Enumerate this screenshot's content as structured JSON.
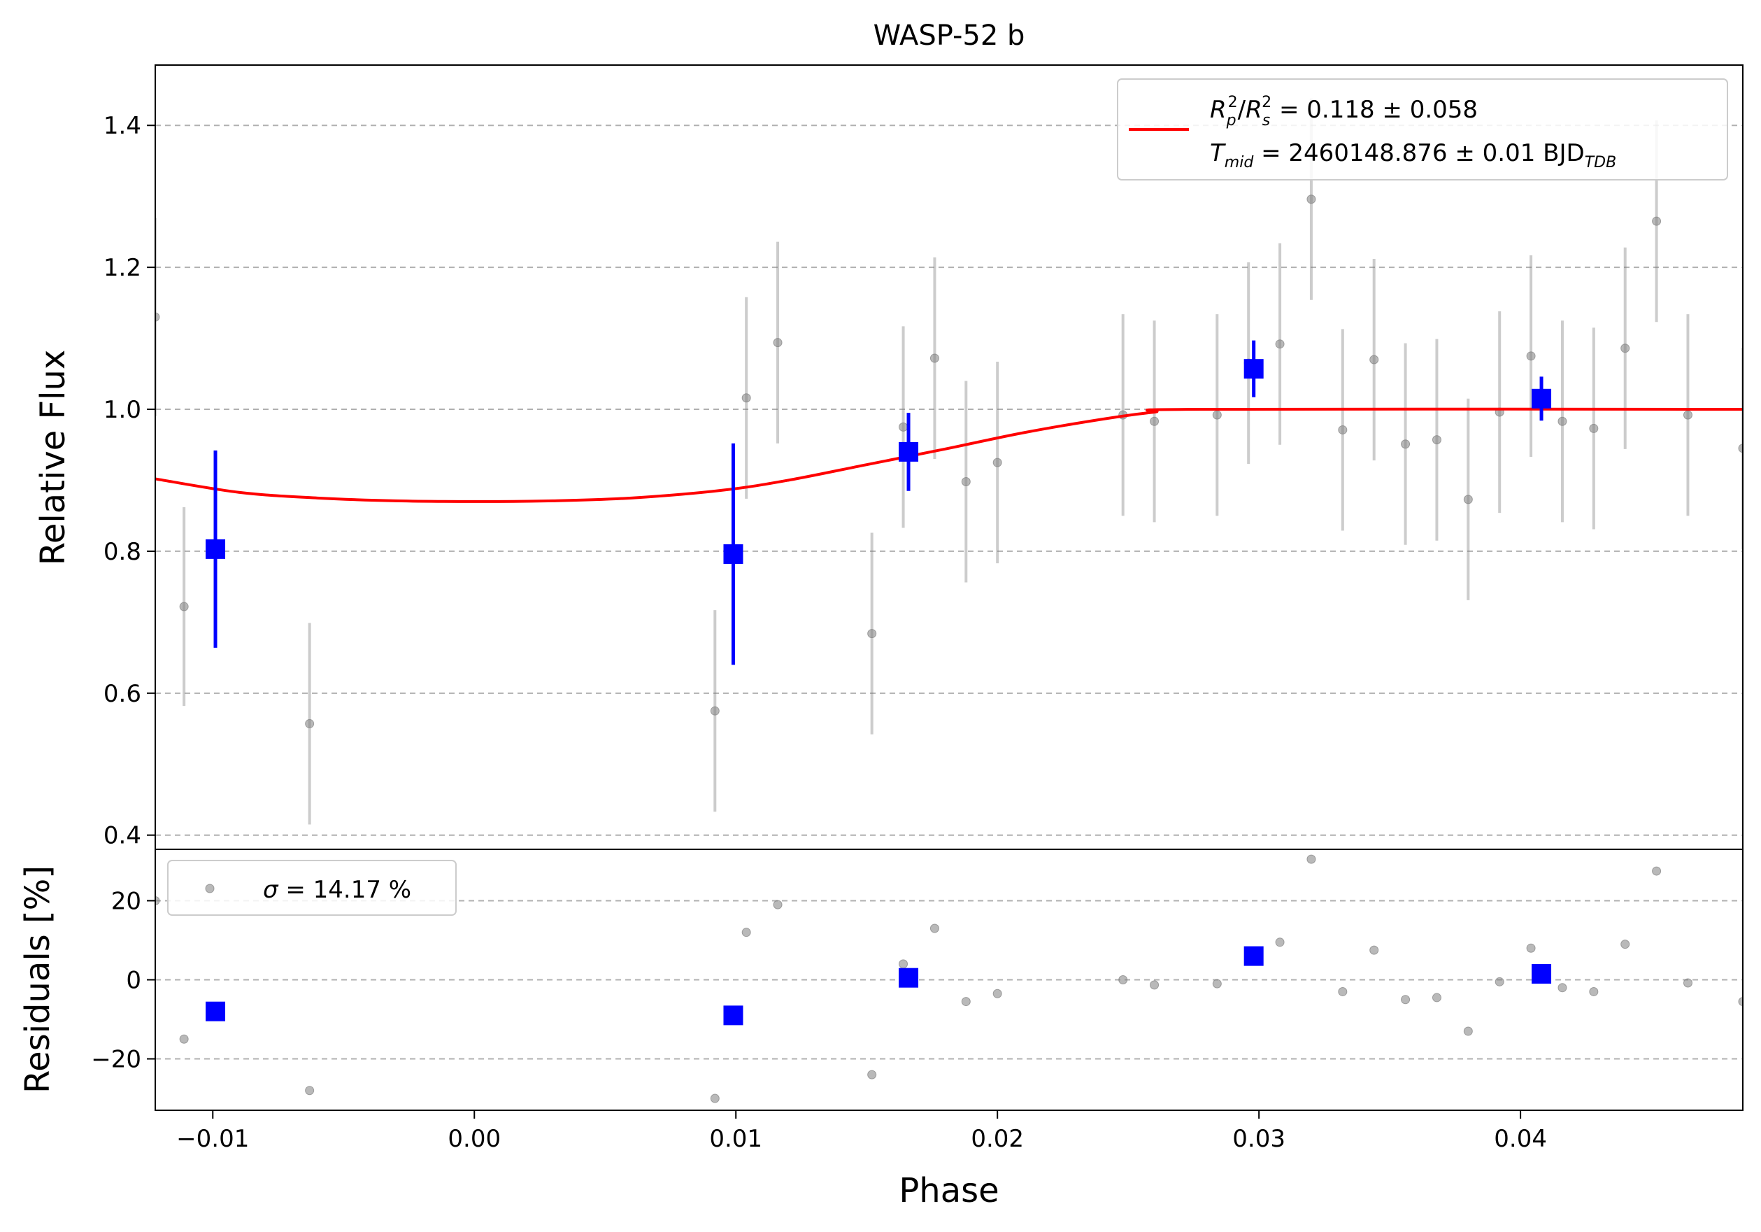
{
  "chart_data": {
    "title": "WASP-52 b",
    "xlabel": "Phase",
    "top_panel": {
      "type": "scatter",
      "ylabel": "Relative Flux",
      "xlim": [
        -0.0122,
        0.0485
      ],
      "ylim": [
        0.38,
        1.485
      ],
      "x_ticks": [
        -0.01,
        0.0,
        0.01,
        0.02,
        0.03,
        0.04
      ],
      "x_tick_labels": [
        "−0.01",
        "0.00",
        "0.01",
        "0.02",
        "0.03",
        "0.04"
      ],
      "y_ticks": [
        0.4,
        0.6,
        0.8,
        1.0,
        1.2,
        1.4
      ],
      "y_tick_labels": [
        "0.4",
        "0.6",
        "0.8",
        "1.0",
        "1.2",
        "1.4"
      ],
      "grid": "horizontal dashed",
      "legend": {
        "placement": "top-right",
        "line1_html": "R<tspan font-style='italic'></tspan>",
        "line1": {
          "a": "R",
          "a_sub": "p",
          "a_sup": "2",
          "b": "R",
          "b_sub": "s",
          "b_sup": "2",
          "rest": " = 0.118 ± 0.058"
        },
        "line2": {
          "a": "T",
          "a_sub": "mid",
          "rest": " = 2460148.876 ± 0.01 BJD",
          "rest_sub": "TDB"
        }
      },
      "raw_points": {
        "color": "#808080",
        "x": [
          -0.0122,
          -0.0111,
          -0.0063,
          0.0092,
          0.0104,
          0.0116,
          0.0152,
          0.0164,
          0.0176,
          0.0188,
          0.02,
          0.0248,
          0.026,
          0.0284,
          0.0296,
          0.0308,
          0.032,
          0.0332,
          0.0344,
          0.0356,
          0.0368,
          0.038,
          0.0392,
          0.0404,
          0.0416,
          0.0428,
          0.044,
          0.0452,
          0.0464,
          0.0485
        ],
        "y": [
          1.13,
          0.722,
          0.557,
          0.575,
          1.016,
          1.094,
          0.684,
          0.975,
          1.072,
          0.898,
          0.925,
          0.992,
          0.983,
          0.992,
          1.065,
          1.092,
          1.296,
          0.971,
          1.07,
          0.951,
          0.957,
          0.873,
          0.996,
          1.075,
          0.983,
          0.973,
          1.086,
          1.265,
          0.992,
          0.945
        ],
        "err": [
          0.14,
          0.14,
          0.142,
          0.142,
          0.142,
          0.142,
          0.142,
          0.142,
          0.142,
          0.142,
          0.142,
          0.142,
          0.142,
          0.142,
          0.142,
          0.142,
          0.142,
          0.142,
          0.142,
          0.142,
          0.142,
          0.142,
          0.142,
          0.142,
          0.142,
          0.142,
          0.142,
          0.142,
          0.142,
          0.142
        ]
      },
      "binned_points": {
        "color": "#0000ff",
        "x": [
          -0.0099,
          0.0099,
          0.0166,
          0.0298,
          0.0408
        ],
        "y": [
          0.803,
          0.796,
          0.94,
          1.057,
          1.015
        ],
        "err": [
          0.139,
          0.156,
          0.055,
          0.04,
          0.031
        ]
      },
      "model": {
        "color": "#ff0000",
        "x": [
          -0.0122,
          -0.009,
          -0.006,
          -0.003,
          0.0,
          0.003,
          0.006,
          0.0095,
          0.012,
          0.015,
          0.018,
          0.021,
          0.024,
          0.026,
          0.0278,
          0.0485
        ],
        "y": [
          0.902,
          0.883,
          0.875,
          0.871,
          0.87,
          0.871,
          0.875,
          0.886,
          0.9,
          0.922,
          0.944,
          0.967,
          0.986,
          0.996,
          1.0,
          1.0
        ]
      }
    },
    "bottom_panel": {
      "type": "scatter",
      "ylabel": "Residuals [%]",
      "ylim": [
        -33,
        33
      ],
      "y_ticks": [
        -20,
        0,
        20
      ],
      "y_tick_labels": [
        "−20",
        "0",
        "20"
      ],
      "grid": "horizontal dashed",
      "legend": {
        "placement": "top-left",
        "symbol": "σ",
        "rest": " = 14.17 %"
      },
      "raw_points": {
        "color": "#808080",
        "x": [
          -0.0122,
          -0.0111,
          -0.0063,
          0.0092,
          0.0104,
          0.0116,
          0.0152,
          0.0164,
          0.0176,
          0.0188,
          0.02,
          0.0248,
          0.026,
          0.0284,
          0.0308,
          0.032,
          0.0332,
          0.0344,
          0.0356,
          0.0368,
          0.038,
          0.0392,
          0.0404,
          0.0416,
          0.0428,
          0.044,
          0.0452,
          0.0464,
          0.0485
        ],
        "y": [
          20,
          -15,
          -28,
          -30,
          12,
          19,
          -24,
          4,
          13,
          -5.5,
          -3.5,
          0,
          -1.3,
          -1,
          9.5,
          30.5,
          -3,
          7.5,
          -5,
          -4.5,
          -13,
          -0.5,
          8,
          -2,
          -3,
          9,
          27.5,
          -0.8,
          -5.5
        ]
      },
      "binned_points": {
        "color": "#0000ff",
        "x": [
          -0.0099,
          0.0099,
          0.0166,
          0.0298,
          0.0408
        ],
        "y": [
          -8,
          -9,
          0.5,
          6,
          1.5
        ]
      }
    }
  }
}
